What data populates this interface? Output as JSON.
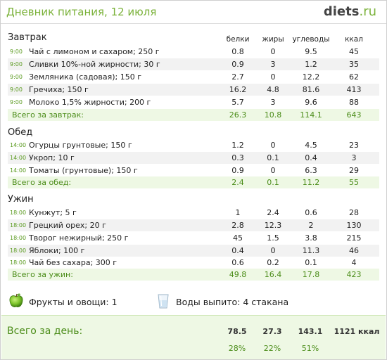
{
  "header": {
    "title": "Дневник питания, 12 июля",
    "brand_name": "diets",
    "brand_tld": ".ru"
  },
  "columns": [
    "белки",
    "жиры",
    "углеводы",
    "ккал"
  ],
  "meals": [
    {
      "title": "Завтрак",
      "items": [
        {
          "time": "9:00",
          "name": "Чай с лимоном и сахаром; 250 г",
          "protein": "0.8",
          "fat": "0",
          "carbs": "9.5",
          "kcal": "45"
        },
        {
          "time": "9:00",
          "name": "Сливки 10%-ной жирности; 30 г",
          "protein": "0.9",
          "fat": "3",
          "carbs": "1.2",
          "kcal": "35"
        },
        {
          "time": "9:00",
          "name": "Земляника (садовая); 150 г",
          "protein": "2.7",
          "fat": "0",
          "carbs": "12.2",
          "kcal": "62"
        },
        {
          "time": "9:00",
          "name": "Гречиха; 150 г",
          "protein": "16.2",
          "fat": "4.8",
          "carbs": "81.6",
          "kcal": "413"
        },
        {
          "time": "9:00",
          "name": "Молоко 1,5% жирности; 200 г",
          "protein": "5.7",
          "fat": "3",
          "carbs": "9.6",
          "kcal": "88"
        }
      ],
      "total": {
        "label": "Всего за завтрак:",
        "protein": "26.3",
        "fat": "10.8",
        "carbs": "114.1",
        "kcal": "643"
      }
    },
    {
      "title": "Обед",
      "items": [
        {
          "time": "14:00",
          "name": "Огурцы грунтовые; 150 г",
          "protein": "1.2",
          "fat": "0",
          "carbs": "4.5",
          "kcal": "23"
        },
        {
          "time": "14:00",
          "name": "Укроп; 10 г",
          "protein": "0.3",
          "fat": "0.1",
          "carbs": "0.4",
          "kcal": "3"
        },
        {
          "time": "14:00",
          "name": "Томаты (грунтовые); 150 г",
          "protein": "0.9",
          "fat": "0",
          "carbs": "6.3",
          "kcal": "29"
        }
      ],
      "total": {
        "label": "Всего за обед:",
        "protein": "2.4",
        "fat": "0.1",
        "carbs": "11.2",
        "kcal": "55"
      }
    },
    {
      "title": "Ужин",
      "items": [
        {
          "time": "18:00",
          "name": "Кунжут; 5 г",
          "protein": "1",
          "fat": "2.4",
          "carbs": "0.6",
          "kcal": "28"
        },
        {
          "time": "18:00",
          "name": "Грецкий орех; 20 г",
          "protein": "2.8",
          "fat": "12.3",
          "carbs": "2",
          "kcal": "130"
        },
        {
          "time": "18:00",
          "name": "Творог нежирный; 250 г",
          "protein": "45",
          "fat": "1.5",
          "carbs": "3.8",
          "kcal": "215"
        },
        {
          "time": "18:00",
          "name": "Яблоки; 100 г",
          "protein": "0.4",
          "fat": "0",
          "carbs": "11.3",
          "kcal": "46"
        },
        {
          "time": "18:00",
          "name": "Чай без сахара; 300 г",
          "protein": "0.6",
          "fat": "0.2",
          "carbs": "0.1",
          "kcal": "4"
        }
      ],
      "total": {
        "label": "Всего за ужин:",
        "protein": "49.8",
        "fat": "16.4",
        "carbs": "17.8",
        "kcal": "423"
      }
    }
  ],
  "extras": {
    "fruits_label": "Фрукты и овощи: 1",
    "water_label": "Воды выпито: 4 стакана",
    "fruit_icon": "apple-icon",
    "water_icon": "glass-icon"
  },
  "day_total": {
    "label": "Всего за день:",
    "protein": "78.5",
    "fat": "27.3",
    "carbs": "143.1",
    "kcal": "1121 ккал",
    "protein_pct": "28%",
    "fat_pct": "22%",
    "carbs_pct": "51%"
  },
  "colors": {
    "accent": "#7bb23a",
    "total_text": "#4a8c18",
    "total_bg": "#eef8e4",
    "row_shade": "#f2f2f2"
  }
}
